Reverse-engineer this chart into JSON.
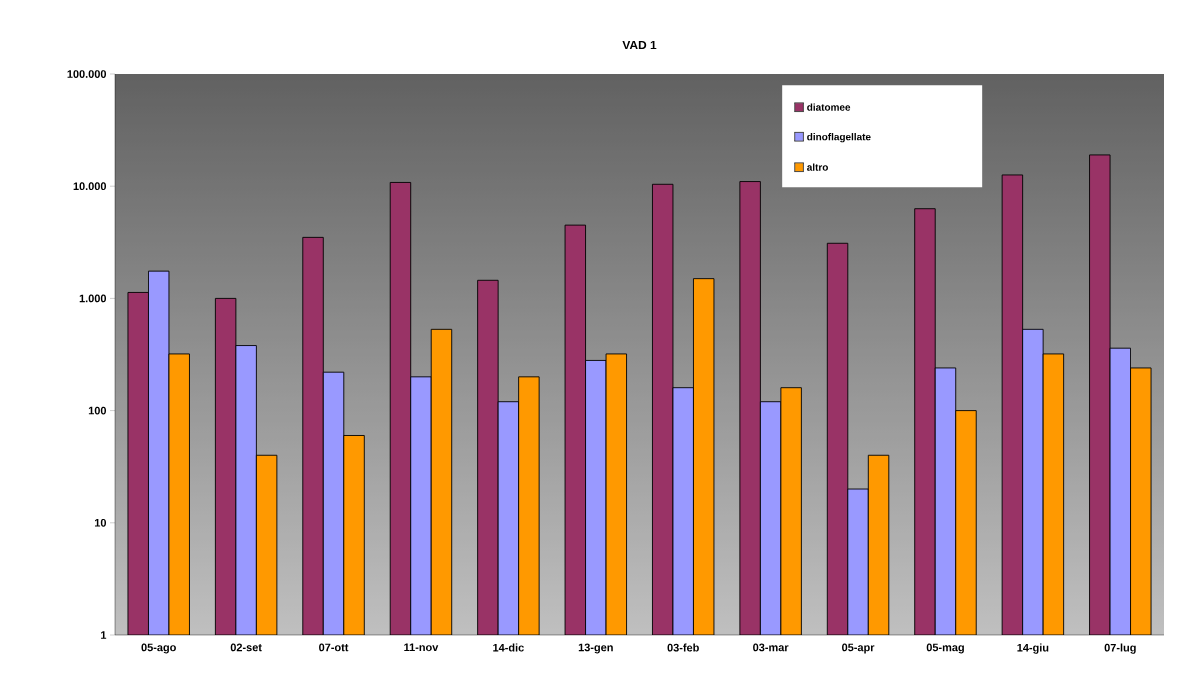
{
  "chart_data": {
    "type": "bar",
    "title": "VAD 1",
    "categories": [
      "05-ago",
      "02-set",
      "07-ott",
      "11-nov",
      "14-dic",
      "13-gen",
      "03-feb",
      "03-mar",
      "05-apr",
      "05-mag",
      "14-giu",
      "07-lug"
    ],
    "series": [
      {
        "name": "diatomee",
        "color": "#993366",
        "values": [
          1130,
          1000,
          3500,
          10800,
          1450,
          4500,
          10400,
          11000,
          3100,
          6300,
          12600,
          19000
        ]
      },
      {
        "name": "dinoflagellate",
        "color": "#9999ff",
        "values": [
          1750,
          380,
          220,
          200,
          120,
          280,
          160,
          120,
          20,
          240,
          530,
          360
        ]
      },
      {
        "name": "altro",
        "color": "#ff9900",
        "values": [
          320,
          40,
          60,
          530,
          200,
          320,
          1500,
          160,
          40,
          100,
          320,
          240
        ]
      }
    ],
    "log": "y",
    "ylim": [
      1,
      100000
    ],
    "yticks": [
      1,
      10,
      100,
      {
        "value": 1000,
        "label": "1.000"
      },
      {
        "value": 10000,
        "label": "10.000"
      },
      {
        "value": 100000,
        "label": "100.000"
      }
    ],
    "grid": false,
    "legend": "top right"
  }
}
